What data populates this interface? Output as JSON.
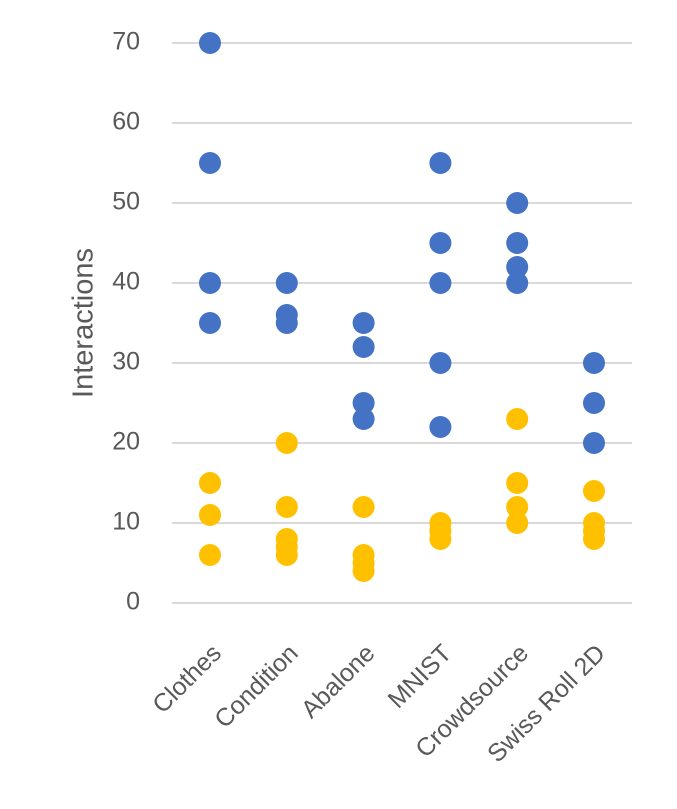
{
  "chart_data": {
    "type": "scatter",
    "title": "",
    "xlabel": "",
    "ylabel": "Interactions",
    "categories": [
      "Clothes",
      "Condition",
      "Abalone",
      "MNIST",
      "Crowdsource",
      "Swiss Roll 2D"
    ],
    "ylim": [
      0,
      70
    ],
    "yticks": [
      0,
      10,
      20,
      30,
      40,
      50,
      60,
      70
    ],
    "grid": true,
    "legend": "none",
    "series": [
      {
        "color": "#4472c4",
        "points": [
          {
            "category": "Clothes",
            "values": [
              70,
              55,
              40,
              35
            ]
          },
          {
            "category": "Condition",
            "values": [
              40,
              36,
              35
            ]
          },
          {
            "category": "Abalone",
            "values": [
              35,
              32,
              25,
              23
            ]
          },
          {
            "category": "MNIST",
            "values": [
              55,
              45,
              40,
              30,
              22
            ]
          },
          {
            "category": "Crowdsource",
            "values": [
              50,
              45,
              42,
              40
            ]
          },
          {
            "category": "Swiss Roll 2D",
            "values": [
              30,
              25,
              20
            ]
          }
        ]
      },
      {
        "color": "#ffc000",
        "points": [
          {
            "category": "Clothes",
            "values": [
              15,
              11,
              6
            ]
          },
          {
            "category": "Condition",
            "values": [
              20,
              12,
              8,
              7,
              6
            ]
          },
          {
            "category": "Abalone",
            "values": [
              12,
              6,
              5,
              4
            ]
          },
          {
            "category": "MNIST",
            "values": [
              10,
              9,
              8
            ]
          },
          {
            "category": "Crowdsource",
            "values": [
              23,
              15,
              12,
              10
            ]
          },
          {
            "category": "Swiss Roll 2D",
            "values": [
              14,
              10,
              9,
              8
            ]
          }
        ]
      }
    ]
  }
}
